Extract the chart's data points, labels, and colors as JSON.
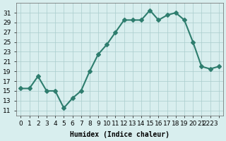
{
  "x": [
    0,
    1,
    2,
    3,
    4,
    5,
    6,
    7,
    8,
    9,
    10,
    11,
    12,
    13,
    14,
    15,
    16,
    17,
    18,
    19,
    20,
    21,
    22,
    23
  ],
  "y": [
    15.5,
    15.5,
    18.0,
    15.0,
    15.0,
    11.5,
    13.5,
    15.0,
    19.0,
    22.5,
    24.5,
    27.0,
    29.5,
    29.5,
    29.5,
    31.5,
    29.5,
    30.5,
    31.0,
    29.5,
    25.0,
    20.0,
    19.5,
    20.0
  ],
  "line_color": "#2e7d6e",
  "marker": "D",
  "marker_size": 3,
  "bg_color": "#d8eeee",
  "grid_color": "#aacccc",
  "xlabel": "Humidex (Indice chaleur)",
  "xlim": [
    -0.5,
    23.5
  ],
  "ylim": [
    10,
    33
  ],
  "yticks": [
    11,
    13,
    15,
    17,
    19,
    21,
    23,
    25,
    27,
    29,
    31
  ],
  "xticks": [
    0,
    1,
    2,
    3,
    4,
    5,
    6,
    7,
    8,
    9,
    10,
    11,
    12,
    13,
    14,
    15,
    16,
    17,
    18,
    19,
    20,
    21,
    22,
    23
  ],
  "xtick_labels": [
    "0",
    "1",
    "2",
    "3",
    "4",
    "5",
    "6",
    "7",
    "8",
    "9",
    "10",
    "11",
    "12",
    "13",
    "14",
    "15",
    "16",
    "17",
    "18",
    "19",
    "20",
    "21",
    "2223",
    ""
  ],
  "axis_fontsize": 7,
  "tick_fontsize": 6.5,
  "linewidth": 1.5
}
